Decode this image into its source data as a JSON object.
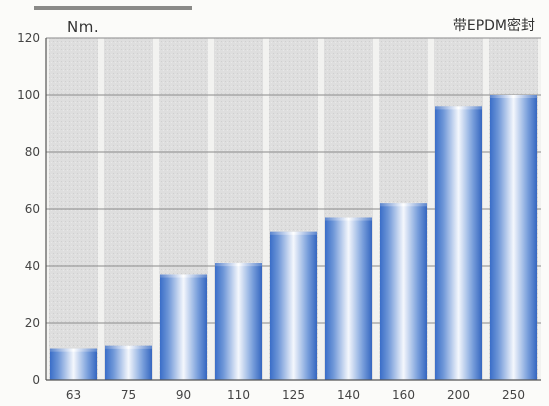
{
  "chart_data": {
    "type": "bar",
    "title": "",
    "ylabel": "Nm.",
    "xlabel": "",
    "annotation": "带EPDM密封",
    "categories": [
      "63",
      "75",
      "90",
      "110",
      "125",
      "140",
      "160",
      "200",
      "250"
    ],
    "values": [
      11,
      12,
      37,
      41,
      52,
      57,
      62,
      96,
      100
    ],
    "ylim": [
      0,
      120
    ],
    "yticks": [
      0,
      20,
      40,
      60,
      80,
      100,
      120
    ],
    "grid": true,
    "colors": {
      "bar_dark": "#3a6ec8",
      "bar_light": "#f4f7fc",
      "column_bg": "#dcdcdc",
      "grid": "#8a8a8a"
    }
  }
}
